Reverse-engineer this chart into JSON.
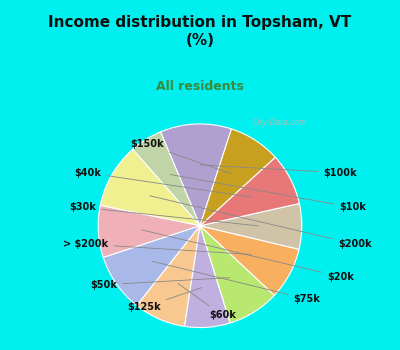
{
  "title": "Income distribution in Topsham, VT\n(%)",
  "subtitle": "All residents",
  "labels": [
    "$100k",
    "$10k",
    "$200k",
    "$20k",
    "$75k",
    "$60k",
    "$125k",
    "$50k",
    "> $200k",
    "$30k",
    "$40k",
    "$150k"
  ],
  "values": [
    11,
    5,
    10,
    8,
    9,
    8,
    7,
    8,
    8,
    7,
    8,
    8
  ],
  "colors": [
    "#b0a0d0",
    "#c0d4a8",
    "#f0f090",
    "#f0b0b8",
    "#a8b8e8",
    "#f8c890",
    "#c0b0e0",
    "#b8e870",
    "#f8b060",
    "#d0c4a8",
    "#e87878",
    "#c8a020"
  ],
  "bg_cyan": "#00f0f0",
  "bg_chart": "#e0f0e8",
  "title_color": "#101010",
  "subtitle_color": "#3a8a3a",
  "watermark": "City-Data.com",
  "startangle": 72,
  "label_fontsize": 7,
  "title_fontsize": 11,
  "subtitle_fontsize": 9
}
